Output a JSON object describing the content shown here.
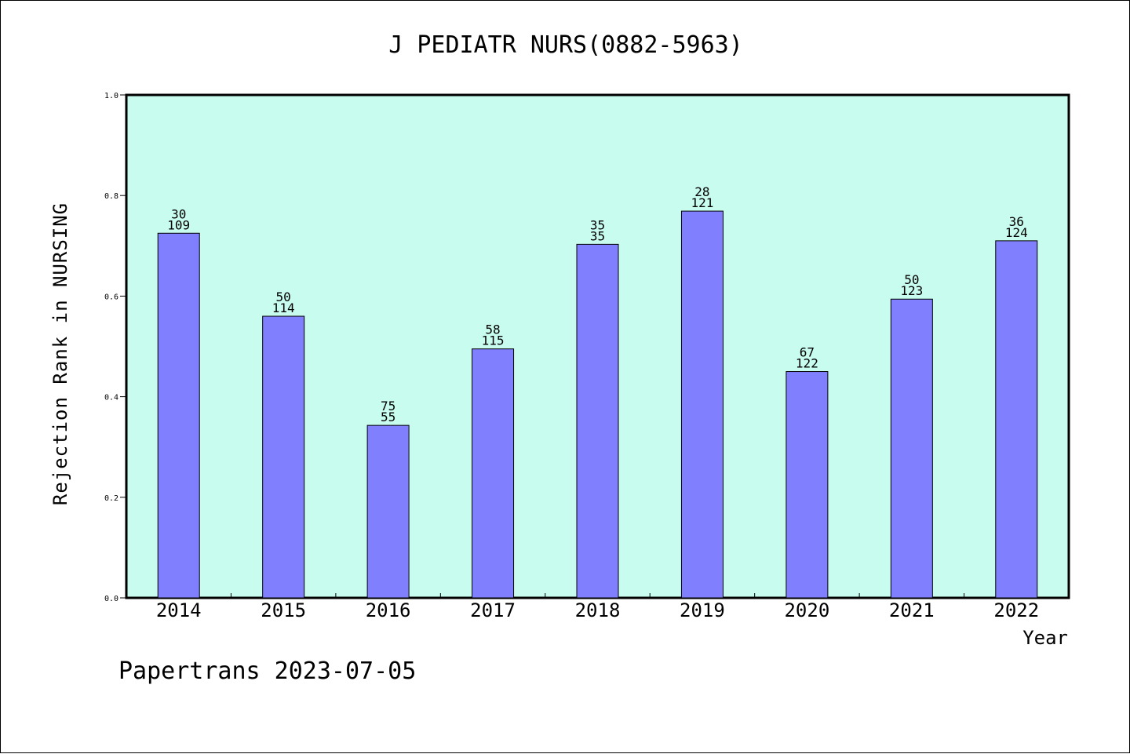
{
  "chart_data": {
    "type": "bar",
    "title": "J PEDIATR NURS(0882-5963)",
    "xlabel": "Year",
    "ylabel": "Rejection Rank in NURSING",
    "ylim": [
      0,
      1.0
    ],
    "yticks": [
      "0.0",
      "0.2",
      "0.4",
      "0.6",
      "0.8",
      "1.0"
    ],
    "categories": [
      "2014",
      "2015",
      "2016",
      "2017",
      "2018",
      "2019",
      "2020",
      "2021",
      "2022"
    ],
    "values": [
      0.725,
      0.56,
      0.343,
      0.495,
      0.703,
      0.769,
      0.45,
      0.594,
      0.71
    ],
    "labels_top": [
      "30",
      "50",
      "75",
      "58",
      "35",
      "28",
      "67",
      "50",
      "36"
    ],
    "labels_bottom": [
      "109",
      "114",
      "55",
      "115",
      "35",
      "121",
      "122",
      "123",
      "124"
    ],
    "grid": false,
    "colors": {
      "plot_background": "#c8fcee",
      "bar_fill": "#8080ff",
      "bar_stroke": "#000000"
    }
  },
  "footer": "Papertrans 2023-07-05"
}
